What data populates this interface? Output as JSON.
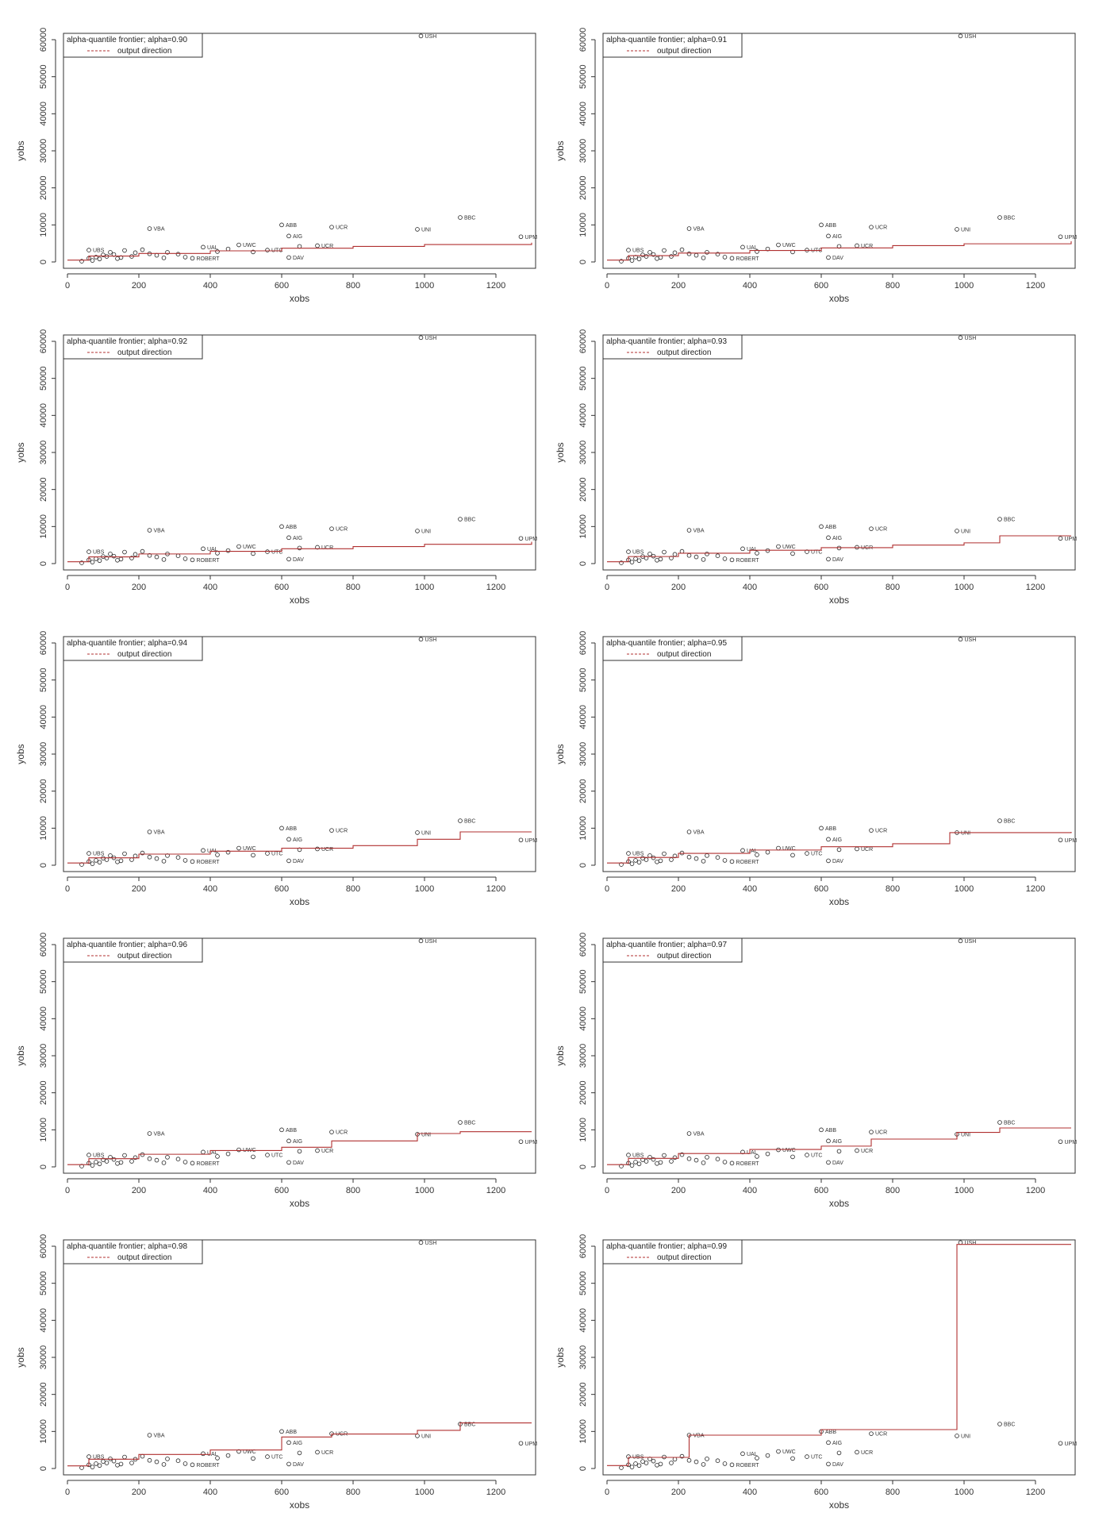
{
  "chart_data": [
    {
      "type": "scatter",
      "legend_title": "alpha-quantile frontier; alpha=0.90",
      "legend_item": "output direction",
      "xlabel": "xobs",
      "ylabel": "yobs",
      "xlim": [
        0,
        1300
      ],
      "ylim": [
        0,
        60000
      ],
      "xticks": [
        0,
        200,
        400,
        600,
        800,
        1000,
        1200
      ],
      "yticks": [
        0,
        10000,
        20000,
        30000,
        40000,
        50000,
        60000
      ],
      "frontier": {
        "x": [
          0,
          60,
          200,
          400,
          600,
          800,
          1000,
          1300
        ],
        "y": [
          500,
          1600,
          2300,
          3000,
          3700,
          4200,
          4700,
          5200
        ]
      }
    },
    {
      "type": "scatter",
      "legend_title": "alpha-quantile frontier; alpha=0.91",
      "legend_item": "output direction",
      "xlabel": "xobs",
      "ylabel": "yobs",
      "xlim": [
        0,
        1300
      ],
      "ylim": [
        0,
        60000
      ],
      "xticks": [
        0,
        200,
        400,
        600,
        800,
        1000,
        1200
      ],
      "yticks": [
        0,
        10000,
        20000,
        30000,
        40000,
        50000,
        60000
      ],
      "frontier": {
        "x": [
          0,
          60,
          200,
          400,
          600,
          800,
          1000,
          1300
        ],
        "y": [
          500,
          1700,
          2400,
          3100,
          3800,
          4400,
          4900,
          5600
        ]
      }
    },
    {
      "type": "scatter",
      "legend_title": "alpha-quantile frontier; alpha=0.92",
      "legend_item": "output direction",
      "xlabel": "xobs",
      "ylabel": "yobs",
      "xlim": [
        0,
        1300
      ],
      "ylim": [
        0,
        60000
      ],
      "xticks": [
        0,
        200,
        400,
        600,
        800,
        1000,
        1200
      ],
      "yticks": [
        0,
        10000,
        20000,
        30000,
        40000,
        50000,
        60000
      ],
      "frontier": {
        "x": [
          0,
          60,
          200,
          400,
          600,
          800,
          1000,
          1300
        ],
        "y": [
          500,
          1800,
          2600,
          3300,
          4000,
          4600,
          5200,
          5900
        ]
      }
    },
    {
      "type": "scatter",
      "legend_title": "alpha-quantile frontier; alpha=0.93",
      "legend_item": "output direction",
      "xlabel": "xobs",
      "ylabel": "yobs",
      "xlim": [
        0,
        1300
      ],
      "ylim": [
        0,
        60000
      ],
      "xticks": [
        0,
        200,
        400,
        600,
        800,
        1000,
        1200
      ],
      "yticks": [
        0,
        10000,
        20000,
        30000,
        40000,
        50000,
        60000
      ],
      "frontier": {
        "x": [
          0,
          60,
          200,
          400,
          600,
          800,
          1000,
          1100,
          1300
        ],
        "y": [
          500,
          1900,
          2800,
          3600,
          4300,
          5000,
          5600,
          7500,
          7500
        ]
      }
    },
    {
      "type": "scatter",
      "legend_title": "alpha-quantile frontier; alpha=0.94",
      "legend_item": "output direction",
      "xlabel": "xobs",
      "ylabel": "yobs",
      "xlim": [
        0,
        1300
      ],
      "ylim": [
        0,
        60000
      ],
      "xticks": [
        0,
        200,
        400,
        600,
        800,
        1000,
        1200
      ],
      "yticks": [
        0,
        10000,
        20000,
        30000,
        40000,
        50000,
        60000
      ],
      "frontier": {
        "x": [
          0,
          60,
          200,
          400,
          600,
          800,
          980,
          1100,
          1300
        ],
        "y": [
          600,
          2000,
          3000,
          3800,
          4600,
          5300,
          7000,
          9000,
          9000
        ]
      }
    },
    {
      "type": "scatter",
      "legend_title": "alpha-quantile frontier; alpha=0.95",
      "legend_item": "output direction",
      "xlabel": "xobs",
      "ylabel": "yobs",
      "xlim": [
        0,
        1300
      ],
      "ylim": [
        0,
        60000
      ],
      "xticks": [
        0,
        200,
        400,
        600,
        800,
        1000,
        1200
      ],
      "yticks": [
        0,
        10000,
        20000,
        30000,
        40000,
        50000,
        60000
      ],
      "frontier": {
        "x": [
          0,
          60,
          200,
          400,
          600,
          800,
          960,
          1300
        ],
        "y": [
          600,
          2100,
          3200,
          4100,
          5000,
          5800,
          8800,
          9000
        ]
      }
    },
    {
      "type": "scatter",
      "legend_title": "alpha-quantile frontier; alpha=0.96",
      "legend_item": "output direction",
      "xlabel": "xobs",
      "ylabel": "yobs",
      "xlim": [
        0,
        1300
      ],
      "ylim": [
        0,
        60000
      ],
      "xticks": [
        0,
        200,
        400,
        600,
        800,
        1000,
        1200
      ],
      "yticks": [
        0,
        10000,
        20000,
        30000,
        40000,
        50000,
        60000
      ],
      "frontier": {
        "x": [
          0,
          60,
          200,
          400,
          600,
          740,
          980,
          1100,
          1300
        ],
        "y": [
          600,
          2200,
          3400,
          4400,
          5300,
          7000,
          9000,
          9500,
          9500
        ]
      }
    },
    {
      "type": "scatter",
      "legend_title": "alpha-quantile frontier; alpha=0.97",
      "legend_item": "output direction",
      "xlabel": "xobs",
      "ylabel": "yobs",
      "xlim": [
        0,
        1300
      ],
      "ylim": [
        0,
        60000
      ],
      "xticks": [
        0,
        200,
        400,
        600,
        800,
        1000,
        1200
      ],
      "yticks": [
        0,
        10000,
        20000,
        30000,
        40000,
        50000,
        60000
      ],
      "frontier": {
        "x": [
          0,
          60,
          200,
          400,
          600,
          740,
          980,
          1100,
          1300
        ],
        "y": [
          600,
          2300,
          3600,
          4700,
          5600,
          7500,
          9300,
          10500,
          10500
        ]
      }
    },
    {
      "type": "scatter",
      "legend_title": "alpha-quantile frontier; alpha=0.98",
      "legend_item": "output direction",
      "xlabel": "xobs",
      "ylabel": "yobs",
      "xlim": [
        0,
        1300
      ],
      "ylim": [
        0,
        60000
      ],
      "xticks": [
        0,
        200,
        400,
        600,
        800,
        1000,
        1200
      ],
      "yticks": [
        0,
        10000,
        20000,
        30000,
        40000,
        50000,
        60000
      ],
      "frontier": {
        "x": [
          0,
          60,
          200,
          400,
          600,
          740,
          980,
          1100,
          1300
        ],
        "y": [
          700,
          2500,
          3800,
          5000,
          8500,
          9300,
          10300,
          12300,
          12300
        ]
      }
    },
    {
      "type": "scatter",
      "legend_title": "alpha-quantile frontier; alpha=0.99",
      "legend_item": "output direction",
      "xlabel": "xobs",
      "ylabel": "yobs",
      "xlim": [
        0,
        1300
      ],
      "ylim": [
        0,
        60000
      ],
      "xticks": [
        0,
        200,
        400,
        600,
        800,
        1000,
        1200
      ],
      "yticks": [
        0,
        10000,
        20000,
        30000,
        40000,
        50000,
        60000
      ],
      "frontier": {
        "x": [
          0,
          60,
          230,
          600,
          980,
          1300
        ],
        "y": [
          800,
          3000,
          9000,
          10500,
          60500,
          60500
        ]
      }
    }
  ],
  "points": [
    {
      "x": 60,
      "y": 3200,
      "label": "UBS"
    },
    {
      "x": 230,
      "y": 9000,
      "label": "VBA"
    },
    {
      "x": 990,
      "y": 61000,
      "label": "USH"
    },
    {
      "x": 600,
      "y": 10000,
      "label": "ABB"
    },
    {
      "x": 620,
      "y": 7000,
      "label": "AIG"
    },
    {
      "x": 740,
      "y": 9400,
      "label": "UCR"
    },
    {
      "x": 1100,
      "y": 12000,
      "label": "BBC"
    },
    {
      "x": 980,
      "y": 8800,
      "label": "UNI"
    },
    {
      "x": 1270,
      "y": 6800,
      "label": "UPM"
    },
    {
      "x": 620,
      "y": 1200,
      "label": "DAV"
    },
    {
      "x": 560,
      "y": 3200,
      "label": "UTC"
    },
    {
      "x": 380,
      "y": 4000,
      "label": "UAL"
    },
    {
      "x": 480,
      "y": 4600,
      "label": "UWC"
    },
    {
      "x": 350,
      "y": 1000,
      "label": "ROBERT"
    },
    {
      "x": 700,
      "y": 4400,
      "label": "UCR"
    },
    {
      "x": 130,
      "y": 2000,
      "label": ""
    },
    {
      "x": 160,
      "y": 3100,
      "label": ""
    },
    {
      "x": 110,
      "y": 1500,
      "label": ""
    },
    {
      "x": 90,
      "y": 800,
      "label": ""
    },
    {
      "x": 70,
      "y": 400,
      "label": ""
    },
    {
      "x": 40,
      "y": 200,
      "label": ""
    },
    {
      "x": 190,
      "y": 2500,
      "label": ""
    },
    {
      "x": 250,
      "y": 1800,
      "label": ""
    },
    {
      "x": 280,
      "y": 2600,
      "label": ""
    },
    {
      "x": 310,
      "y": 2100,
      "label": ""
    },
    {
      "x": 330,
      "y": 1300,
      "label": ""
    },
    {
      "x": 420,
      "y": 2800,
      "label": ""
    },
    {
      "x": 450,
      "y": 3500,
      "label": ""
    },
    {
      "x": 520,
      "y": 2700,
      "label": ""
    },
    {
      "x": 150,
      "y": 1200,
      "label": ""
    },
    {
      "x": 120,
      "y": 2600,
      "label": ""
    },
    {
      "x": 100,
      "y": 1900,
      "label": ""
    },
    {
      "x": 180,
      "y": 1500,
      "label": ""
    },
    {
      "x": 210,
      "y": 3300,
      "label": ""
    },
    {
      "x": 60,
      "y": 1000,
      "label": ""
    },
    {
      "x": 80,
      "y": 1300,
      "label": ""
    },
    {
      "x": 140,
      "y": 900,
      "label": ""
    },
    {
      "x": 230,
      "y": 2200,
      "label": ""
    },
    {
      "x": 270,
      "y": 1100,
      "label": ""
    },
    {
      "x": 650,
      "y": 4200,
      "label": ""
    }
  ]
}
